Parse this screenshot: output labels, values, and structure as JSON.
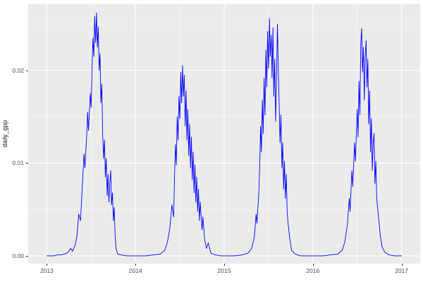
{
  "chart_data": {
    "type": "line",
    "title": "",
    "xlabel": "",
    "ylabel": "daily_gpp",
    "xlim": [
      2012.79,
      2017.21
    ],
    "ylim": [
      -0.00084,
      0.02713
    ],
    "x_ticks": [
      2013,
      2014,
      2015,
      2016,
      2017
    ],
    "x_tick_labels": [
      "2013",
      "2014",
      "2015",
      "2016",
      "2017"
    ],
    "x_minor_ticks": [
      2013.5,
      2014.5,
      2015.5,
      2016.5
    ],
    "y_ticks": [
      0.0,
      0.01,
      0.02
    ],
    "y_tick_labels": [
      "0.00",
      "0.01",
      "0.02"
    ],
    "y_minor_ticks": [
      0.005,
      0.015,
      0.025
    ],
    "grid": true,
    "legend": "none",
    "panel_background": "#EBEBEB",
    "grid_color": "#FFFFFF",
    "line_color": "#0000FF",
    "tick_label_color": "#4d4d4d",
    "series": [
      {
        "name": "daily_gpp",
        "x": [
          2013.0,
          2013.04,
          2013.08,
          2013.12,
          2013.16,
          2013.2,
          2013.24,
          2013.27,
          2013.29,
          2013.32,
          2013.34,
          2013.36,
          2013.38,
          2013.4,
          2013.42,
          2013.43,
          2013.45,
          2013.46,
          2013.47,
          2013.49,
          2013.5,
          2013.51,
          2013.52,
          2013.53,
          2013.54,
          2013.55,
          2013.56,
          2013.57,
          2013.58,
          2013.59,
          2013.6,
          2013.61,
          2013.62,
          2013.63,
          2013.64,
          2013.65,
          2013.66,
          2013.67,
          2013.68,
          2013.69,
          2013.7,
          2013.71,
          2013.72,
          2013.73,
          2013.74,
          2013.75,
          2013.76,
          2013.77,
          2013.78,
          2013.8,
          2013.84,
          2013.9,
          2013.96,
          2014.04,
          2014.12,
          2014.2,
          2014.28,
          2014.33,
          2014.36,
          2014.39,
          2014.41,
          2014.43,
          2014.44,
          2014.45,
          2014.46,
          2014.47,
          2014.48,
          2014.49,
          2014.5,
          2014.51,
          2014.52,
          2014.53,
          2014.54,
          2014.55,
          2014.56,
          2014.57,
          2014.58,
          2014.59,
          2014.6,
          2014.61,
          2014.62,
          2014.63,
          2014.64,
          2014.65,
          2014.66,
          2014.67,
          2014.68,
          2014.69,
          2014.7,
          2014.71,
          2014.72,
          2014.73,
          2014.75,
          2014.76,
          2014.78,
          2014.8,
          2014.82,
          2014.85,
          2014.9,
          2014.96,
          2015.04,
          2015.12,
          2015.2,
          2015.27,
          2015.31,
          2015.34,
          2015.36,
          2015.37,
          2015.39,
          2015.4,
          2015.41,
          2015.42,
          2015.43,
          2015.44,
          2015.45,
          2015.46,
          2015.47,
          2015.48,
          2015.49,
          2015.5,
          2015.51,
          2015.52,
          2015.53,
          2015.54,
          2015.55,
          2015.56,
          2015.57,
          2015.58,
          2015.59,
          2015.6,
          2015.61,
          2015.62,
          2015.63,
          2015.64,
          2015.65,
          2015.66,
          2015.67,
          2015.68,
          2015.69,
          2015.7,
          2015.71,
          2015.72,
          2015.74,
          2015.76,
          2015.8,
          2015.86,
          2015.94,
          2016.04,
          2016.12,
          2016.2,
          2016.28,
          2016.33,
          2016.36,
          2016.39,
          2016.41,
          2016.42,
          2016.44,
          2016.45,
          2016.47,
          2016.48,
          2016.5,
          2016.51,
          2016.52,
          2016.53,
          2016.54,
          2016.55,
          2016.56,
          2016.57,
          2016.58,
          2016.59,
          2016.6,
          2016.61,
          2016.62,
          2016.63,
          2016.64,
          2016.65,
          2016.66,
          2016.67,
          2016.68,
          2016.69,
          2016.7,
          2016.71,
          2016.72,
          2016.74,
          2016.76,
          2016.78,
          2016.81,
          2016.86,
          2016.92,
          2017.0
        ],
        "y": [
          0,
          0,
          0,
          0.0001,
          0.0001,
          0.0002,
          0.0004,
          0.0008,
          0.0005,
          0.0012,
          0.0022,
          0.0045,
          0.0038,
          0.0075,
          0.011,
          0.0095,
          0.013,
          0.0155,
          0.0135,
          0.0175,
          0.016,
          0.0205,
          0.0235,
          0.0215,
          0.0258,
          0.023,
          0.0262,
          0.0225,
          0.0247,
          0.02,
          0.0218,
          0.0165,
          0.0185,
          0.013,
          0.0105,
          0.0125,
          0.0085,
          0.0105,
          0.0065,
          0.0088,
          0.0058,
          0.0078,
          0.0092,
          0.0055,
          0.0068,
          0.0038,
          0.0052,
          0.0022,
          0.0008,
          0.0002,
          0.0001,
          0,
          0,
          0,
          0,
          0.0001,
          0.0002,
          0.0006,
          0.0015,
          0.0032,
          0.0055,
          0.0042,
          0.0085,
          0.012,
          0.0098,
          0.015,
          0.0125,
          0.0172,
          0.0148,
          0.0198,
          0.0165,
          0.0205,
          0.0172,
          0.0195,
          0.014,
          0.0178,
          0.0125,
          0.0158,
          0.0108,
          0.0142,
          0.0095,
          0.0128,
          0.0082,
          0.0112,
          0.0068,
          0.0098,
          0.0058,
          0.0085,
          0.0048,
          0.0072,
          0.0038,
          0.0058,
          0.0028,
          0.0042,
          0.0018,
          0.0008,
          0.0014,
          0.0003,
          0.0001,
          0,
          0,
          0,
          0.0001,
          0.0003,
          0.0008,
          0.002,
          0.0045,
          0.0035,
          0.0068,
          0.0095,
          0.014,
          0.0112,
          0.0168,
          0.0132,
          0.0192,
          0.0152,
          0.0222,
          0.0182,
          0.0242,
          0.0202,
          0.0256,
          0.0215,
          0.0238,
          0.0192,
          0.0246,
          0.0172,
          0.0212,
          0.0145,
          0.0188,
          0.025,
          0.0205,
          0.0162,
          0.0122,
          0.0152,
          0.0095,
          0.0122,
          0.0072,
          0.0102,
          0.0062,
          0.0088,
          0.0048,
          0.0035,
          0.0018,
          0.0006,
          0.0002,
          0,
          0,
          0,
          0,
          0.0001,
          0.0002,
          0.0006,
          0.0015,
          0.0035,
          0.0062,
          0.0048,
          0.0092,
          0.0075,
          0.0122,
          0.0102,
          0.0158,
          0.0128,
          0.0188,
          0.0152,
          0.0228,
          0.0245,
          0.0198,
          0.0225,
          0.0168,
          0.0215,
          0.0232,
          0.0182,
          0.0212,
          0.0142,
          0.0178,
          0.0112,
          0.0148,
          0.0092,
          0.0122,
          0.0132,
          0.0078,
          0.0102,
          0.0062,
          0.0042,
          0.0022,
          0.001,
          0.0004,
          0.0001,
          0,
          0
        ]
      }
    ]
  }
}
